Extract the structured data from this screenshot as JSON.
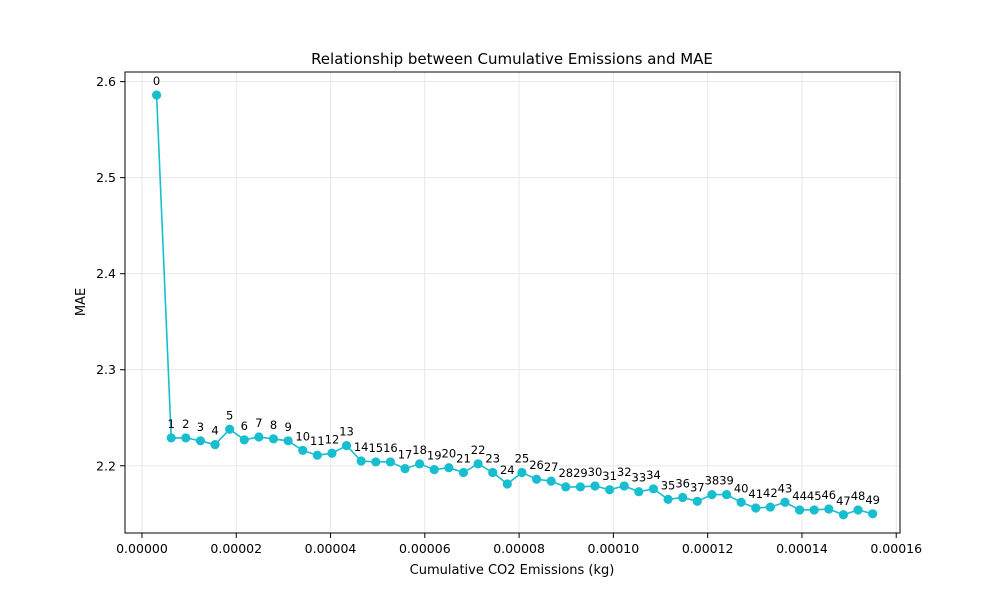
{
  "chart_data": {
    "type": "line",
    "title": "Relationship between Cumulative Emissions and MAE",
    "xlabel": "Cumulative CO2 Emissions (kg)",
    "ylabel": "MAE",
    "xlim": [
      -3.6e-06,
      0.0001608
    ],
    "ylim": [
      2.13,
      2.61
    ],
    "xticks": [
      0,
      2e-05,
      4e-05,
      6e-05,
      8e-05,
      0.0001,
      0.00012,
      0.00014,
      0.00016
    ],
    "xtick_labels": [
      "0.00000",
      "0.00002",
      "0.00004",
      "0.00006",
      "0.00008",
      "0.00010",
      "0.00012",
      "0.00014",
      "0.00016"
    ],
    "yticks": [
      2.2,
      2.3,
      2.4,
      2.5,
      2.6
    ],
    "ytick_labels": [
      "2.2",
      "2.3",
      "2.4",
      "2.5",
      "2.6"
    ],
    "grid": true,
    "color": "#17becf",
    "series": [
      {
        "x": [
          3.1e-06,
          6.2e-06,
          9.3e-06,
          1.24e-05,
          1.55e-05,
          1.86e-05,
          2.17e-05,
          2.48e-05,
          2.79e-05,
          3.1e-05,
          3.41e-05,
          3.72e-05,
          4.03e-05,
          4.34e-05,
          4.65e-05,
          4.96e-05,
          5.27e-05,
          5.58e-05,
          5.89e-05,
          6.2e-05,
          6.51e-05,
          6.82e-05,
          7.13e-05,
          7.44e-05,
          7.75e-05,
          8.06e-05,
          8.37e-05,
          8.68e-05,
          8.99e-05,
          9.3e-05,
          9.61e-05,
          9.92e-05,
          0.0001023,
          0.0001054,
          0.0001085,
          0.0001116,
          0.0001147,
          0.0001178,
          0.0001209,
          0.000124,
          0.0001271,
          0.0001302,
          0.0001333,
          0.0001364,
          0.0001395,
          0.0001426,
          0.0001457,
          0.0001488,
          0.0001519,
          0.000155
        ],
        "y": [
          2.586,
          2.229,
          2.229,
          2.226,
          2.222,
          2.238,
          2.227,
          2.23,
          2.228,
          2.226,
          2.216,
          2.211,
          2.213,
          2.221,
          2.205,
          2.204,
          2.204,
          2.197,
          2.202,
          2.196,
          2.198,
          2.193,
          2.202,
          2.193,
          2.181,
          2.193,
          2.186,
          2.184,
          2.178,
          2.178,
          2.179,
          2.175,
          2.179,
          2.173,
          2.176,
          2.165,
          2.167,
          2.163,
          2.17,
          2.17,
          2.162,
          2.156,
          2.157,
          2.162,
          2.154,
          2.154,
          2.155,
          2.149,
          2.154,
          2.15
        ],
        "labels": [
          "0",
          "1",
          "2",
          "3",
          "4",
          "5",
          "6",
          "7",
          "8",
          "9",
          "10",
          "11",
          "12",
          "13",
          "14",
          "15",
          "16",
          "17",
          "18",
          "19",
          "20",
          "21",
          "22",
          "23",
          "24",
          "25",
          "26",
          "27",
          "28",
          "29",
          "30",
          "31",
          "32",
          "33",
          "34",
          "35",
          "36",
          "37",
          "38",
          "39",
          "40",
          "41",
          "42",
          "43",
          "44",
          "45",
          "46",
          "47",
          "48",
          "49"
        ]
      }
    ]
  }
}
